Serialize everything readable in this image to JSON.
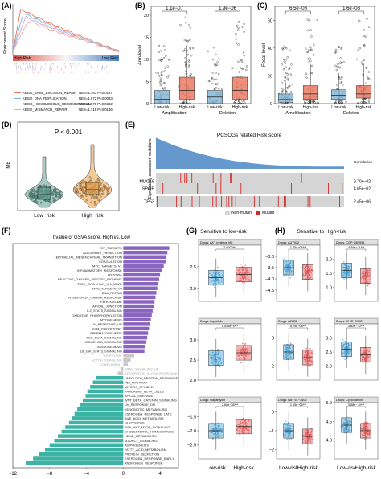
{
  "panels": {
    "A": {
      "label": "(A)",
      "ylabel": "Enrichment Score",
      "high_label": "High Risk",
      "low_label": "Low Risk",
      "legend": [
        {
          "name": "KEGG_BASE_EXCISION_REPAIR",
          "stat": "NES=1.763 P=0.0127",
          "color": "#e8735a"
        },
        {
          "name": "KEGG_DNA_REPLICATION",
          "stat": "NES=1.972 P=0.0043",
          "color": "#7fb3d5"
        },
        {
          "name": "KEGG_HOMOLOGOUS_RECOMBINATION",
          "stat": "NES=1.870 P=0.0362",
          "color": "#b9a8d6"
        },
        {
          "name": "KEGG_MISMATCH_REPAIR",
          "stat": "NES=1.718 P=0.0146",
          "color": "#f3a7a7"
        }
      ]
    },
    "B": {
      "label": "(B)",
      "ylabel": "Arm-level",
      "yticks": [
        "0",
        "5",
        "10",
        "15",
        "20"
      ],
      "groups": [
        "Amplification",
        "Deletion"
      ],
      "xticks": [
        "Low-risk",
        "High-risk",
        "Low-risk",
        "High-risk"
      ],
      "pvals": [
        "1.1e−07",
        "1.9e−06"
      ]
    },
    "C": {
      "label": "(C)",
      "ylabel": "Focal-level",
      "yticks": [
        "0",
        "20",
        "40",
        "60"
      ],
      "groups": [
        "Amplification",
        "Deletion"
      ],
      "xticks": [
        "Low-risk",
        "High-risk",
        "Low-risk",
        "High-risk"
      ],
      "pvals": [
        "6.5e−08",
        "1.6e−08"
      ]
    },
    "D": {
      "label": "(D)",
      "ylabel": "TMB",
      "pval": "P < 0.001",
      "xticks": [
        "Low−risk",
        "High−risk"
      ]
    },
    "E": {
      "label": "(E)",
      "title": "PCSCGs related Risk score",
      "ylabel": "Significantly associated mutations",
      "genes": [
        "MUC16",
        "SPOP",
        "TP53"
      ],
      "corr_header": "Correlation",
      "corr": [
        "9.70e−02",
        "4.65e−02",
        "2.45e−06"
      ],
      "legend": [
        "Non-mutant",
        "Mutant"
      ]
    },
    "F": {
      "label": "(F)",
      "title": "t value of GSVA score, High vs. Low"
    },
    "G": {
      "label": "(G)",
      "title": "Sensitive to low-risk"
    },
    "H": {
      "label": "(H)",
      "title": "Sensitive to High-risk"
    }
  },
  "chart_data": [
    {
      "type": "line",
      "panel": "A",
      "title": "",
      "ylabel": "Enrichment Score",
      "series": [
        {
          "name": "KEGG_BASE_EXCISION_REPAIR"
        },
        {
          "name": "KEGG_DNA_REPLICATION"
        },
        {
          "name": "KEGG_HOMOLOGOUS_RECOMBINATION"
        },
        {
          "name": "KEGG_MISMATCH_REPAIR"
        }
      ]
    },
    {
      "type": "box",
      "panel": "B",
      "ylabel": "Arm-level",
      "ylim": [
        0,
        22
      ],
      "categories": [
        "Low-risk",
        "High-risk",
        "Low-risk",
        "High-risk"
      ],
      "groups": [
        "Amplification",
        "Deletion"
      ],
      "medians": [
        1,
        3,
        1.5,
        3
      ],
      "q1": [
        0,
        1,
        0,
        1
      ],
      "q3": [
        3,
        6,
        3,
        6
      ],
      "pvalues": [
        "1.1e−07",
        "1.9e−06"
      ]
    },
    {
      "type": "box",
      "panel": "C",
      "ylabel": "Focal-level",
      "ylim": [
        0,
        70
      ],
      "categories": [
        "Low-risk",
        "High-risk",
        "Low-risk",
        "High-risk"
      ],
      "groups": [
        "Amplification",
        "Deletion"
      ],
      "medians": [
        3,
        7,
        6,
        7
      ],
      "q1": [
        1,
        3,
        3,
        4
      ],
      "q3": [
        7,
        13,
        10,
        13
      ],
      "pvalues": [
        "6.5e−08",
        "1.6e−08"
      ]
    },
    {
      "type": "violin",
      "panel": "D",
      "ylabel": "TMB",
      "categories": [
        "Low−risk",
        "High−risk"
      ],
      "pvalue": "P < 0.001"
    },
    {
      "type": "heatmap",
      "panel": "E",
      "title": "PCSCGs related Risk score",
      "genes": [
        "MUC16",
        "SPOP",
        "TP53"
      ],
      "correlation": [
        "9.70e−02",
        "4.65e−02",
        "2.45e−06"
      ],
      "legend": [
        "Non-mutant",
        "Mutant"
      ]
    },
    {
      "type": "bar",
      "panel": "F",
      "title": "t value of GSVA score, High vs. Low",
      "xlim": [
        -12,
        6
      ],
      "xticks": [
        "−12",
        "−8",
        "−4",
        "0",
        "4"
      ],
      "categories": [
        "E2F_TARGETS",
        "ALLOGRAFT_REJECTION",
        "EPITHELIAL_MESENCHYMAL_TRANSITION",
        "COAGULATION",
        "MYC_TARGETS_V1",
        "INFLAMMATORY_RESPONSE",
        "HYPOXIA",
        "REACTIVE_OXYGEN_SPECIES_PATHWAY",
        "TNFA_SIGNALING_VIA_NFKB",
        "MYC_TARGETS_V2",
        "DNA_REPAIR",
        "INTERFERON_GAMMA_RESPONSE",
        "PEROXISOME",
        "APICAL_JUNCTION",
        "IL2_STAT5_SIGNALING",
        "OXIDATIVE_PHOSPHORYLATION",
        "MYOGENESIS",
        "UV_RESPONSE_UP",
        "G2M_CHECKPOINT",
        "SPERMATOGENESIS",
        "TGF_BETA_SIGNALING",
        "HEDGEHOG_SIGNALING",
        "ANGIOGENESIS",
        "IL6_JAK_STAT3_SIGNALING",
        "APOPTOSIS",
        "NOTCH_SIGNALING",
        "COMPLEMENT",
        "KRAS_SIGNALING_UP",
        "INTERFERON_ALPHA_RESPONSE",
        "UNFOLDED_PROTEIN_RESPONSE",
        "P53_PATHWAY",
        "MITOTIC_SPINDLE",
        "PANCREAS_BETA_CELLS",
        "APICAL_SURFACE",
        "WNT_BETA_CATENIN_SIGNALING",
        "UV_RESPONSE_DN",
        "XENOBIOTIC_METABOLISM",
        "ESTROGEN_RESPONSE_LATE",
        "BILE_ACID_METABOLISM",
        "GLYCOLYSIS",
        "PI3K_AKT_MTOR_SIGNALING",
        "CHOLESTEROL_HOMEOSTASIS",
        "HEME_METABOLISM",
        "MTORC1_SIGNALING",
        "ADIPOGENESIS",
        "FATTY_ACID_METABOLISM",
        "PROTEIN_SECRETION",
        "ESTROGEN_RESPONSE_EARLY",
        "ANDROGEN_RESPONSE"
      ],
      "values": [
        5.0,
        4.8,
        4.7,
        4.6,
        4.4,
        4.2,
        4.0,
        3.9,
        3.8,
        3.7,
        3.6,
        3.5,
        3.4,
        3.3,
        3.2,
        3.1,
        3.0,
        2.9,
        2.8,
        2.7,
        2.6,
        2.5,
        2.4,
        2.3,
        1.2,
        0.8,
        0.5,
        -0.3,
        -0.6,
        -3.0,
        -3.3,
        -3.6,
        -3.9,
        -4.1,
        -4.4,
        -4.7,
        -5.0,
        -5.3,
        -5.6,
        -5.9,
        -6.3,
        -6.7,
        -7.1,
        -7.5,
        -8.0,
        -8.5,
        -9.2,
        -9.8,
        -10.6
      ]
    },
    {
      "type": "box",
      "panel": "G",
      "facets": [
        {
          "title": "Drugs: AKT inhibitor VIII",
          "p": "2.0002***",
          "ylim": [
            1.7,
            3.0
          ],
          "yticks": [
            "2.0",
            "2.5"
          ],
          "medians": [
            2.25,
            2.32
          ]
        },
        {
          "title": "Drugs: Lapatinib",
          "p": "5.056e−5***",
          "ylim": [
            2.0,
            3.4
          ],
          "yticks": [
            "2.0",
            "2.5",
            "3.0"
          ],
          "medians": [
            2.55,
            2.68
          ]
        },
        {
          "title": "Drugs: Rapamycin",
          "p": "2.68e−05***",
          "ylim": [
            -3.0,
            -1.0
          ],
          "yticks": [
            "−2.5",
            "−2.0",
            "−1.5"
          ],
          "medians": [
            -2.0,
            -1.85
          ]
        }
      ],
      "categories": [
        "Low-risk",
        "High-risk"
      ]
    },
    {
      "type": "box",
      "panel": "H",
      "facets": [
        {
          "title": "Drugs: AUY922",
          "p": "1.75e−06***",
          "ylim": [
            -5.0,
            -2.5
          ],
          "yticks": [
            "−4.5",
            "−4.0",
            "−3.5",
            "−3.0"
          ],
          "medians": [
            -3.5,
            -3.7
          ]
        },
        {
          "title": "Drugs: CGP−082996",
          "p": "4.49e−11***",
          "ylim": [
            0.5,
            2.5
          ],
          "yticks": [
            "1.0",
            "1.5",
            "2.0"
          ],
          "medians": [
            1.6,
            1.4
          ]
        },
        {
          "title": "Drugs: AZ628",
          "p": "5.29e−06***",
          "ylim": [
            1.5,
            3.5
          ],
          "yticks": [
            "2",
            "3"
          ],
          "medians": [
            2.5,
            2.3
          ]
        },
        {
          "title": "Drugs: CHIR−99021",
          "p": "3.82e−10***",
          "ylim": [
            1.5,
            3.5
          ],
          "yticks": [
            "2.0",
            "2.5",
            "3.0"
          ],
          "medians": [
            2.6,
            2.4
          ]
        },
        {
          "title": "Drugs: BAY 61−3606",
          "p": "1.05e−06***",
          "ylim": [
            -2.5,
            0.5
          ],
          "yticks": [
            "−2",
            "−1",
            "0"
          ],
          "medians": [
            -1.0,
            -1.3
          ]
        },
        {
          "title": "Drugs: Cyclopamine",
          "p": "3.58e−14***",
          "ylim": [
            3.5,
            5.0
          ],
          "yticks": [
            "4.0",
            "4.5",
            "5.0"
          ],
          "medians": [
            4.4,
            4.25
          ]
        }
      ],
      "categories": [
        "Low-risk",
        "High-risk"
      ]
    }
  ]
}
